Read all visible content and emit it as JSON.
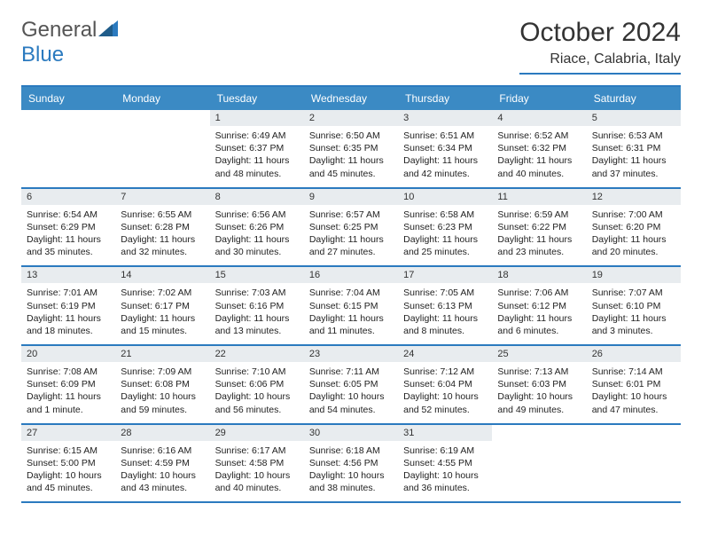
{
  "logo": {
    "word1": "General",
    "word2": "Blue"
  },
  "title": "October 2024",
  "location": "Riace, Calabria, Italy",
  "day_names": [
    "Sunday",
    "Monday",
    "Tuesday",
    "Wednesday",
    "Thursday",
    "Friday",
    "Saturday"
  ],
  "header_bg": "#3b8ac4",
  "accent": "#2b7abf",
  "date_bg": "#e8ecef",
  "weeks": [
    [
      {
        "n": "",
        "sr": "",
        "ss": "",
        "d1": "",
        "d2": ""
      },
      {
        "n": "",
        "sr": "",
        "ss": "",
        "d1": "",
        "d2": ""
      },
      {
        "n": "1",
        "sr": "Sunrise: 6:49 AM",
        "ss": "Sunset: 6:37 PM",
        "d1": "Daylight: 11 hours",
        "d2": "and 48 minutes."
      },
      {
        "n": "2",
        "sr": "Sunrise: 6:50 AM",
        "ss": "Sunset: 6:35 PM",
        "d1": "Daylight: 11 hours",
        "d2": "and 45 minutes."
      },
      {
        "n": "3",
        "sr": "Sunrise: 6:51 AM",
        "ss": "Sunset: 6:34 PM",
        "d1": "Daylight: 11 hours",
        "d2": "and 42 minutes."
      },
      {
        "n": "4",
        "sr": "Sunrise: 6:52 AM",
        "ss": "Sunset: 6:32 PM",
        "d1": "Daylight: 11 hours",
        "d2": "and 40 minutes."
      },
      {
        "n": "5",
        "sr": "Sunrise: 6:53 AM",
        "ss": "Sunset: 6:31 PM",
        "d1": "Daylight: 11 hours",
        "d2": "and 37 minutes."
      }
    ],
    [
      {
        "n": "6",
        "sr": "Sunrise: 6:54 AM",
        "ss": "Sunset: 6:29 PM",
        "d1": "Daylight: 11 hours",
        "d2": "and 35 minutes."
      },
      {
        "n": "7",
        "sr": "Sunrise: 6:55 AM",
        "ss": "Sunset: 6:28 PM",
        "d1": "Daylight: 11 hours",
        "d2": "and 32 minutes."
      },
      {
        "n": "8",
        "sr": "Sunrise: 6:56 AM",
        "ss": "Sunset: 6:26 PM",
        "d1": "Daylight: 11 hours",
        "d2": "and 30 minutes."
      },
      {
        "n": "9",
        "sr": "Sunrise: 6:57 AM",
        "ss": "Sunset: 6:25 PM",
        "d1": "Daylight: 11 hours",
        "d2": "and 27 minutes."
      },
      {
        "n": "10",
        "sr": "Sunrise: 6:58 AM",
        "ss": "Sunset: 6:23 PM",
        "d1": "Daylight: 11 hours",
        "d2": "and 25 minutes."
      },
      {
        "n": "11",
        "sr": "Sunrise: 6:59 AM",
        "ss": "Sunset: 6:22 PM",
        "d1": "Daylight: 11 hours",
        "d2": "and 23 minutes."
      },
      {
        "n": "12",
        "sr": "Sunrise: 7:00 AM",
        "ss": "Sunset: 6:20 PM",
        "d1": "Daylight: 11 hours",
        "d2": "and 20 minutes."
      }
    ],
    [
      {
        "n": "13",
        "sr": "Sunrise: 7:01 AM",
        "ss": "Sunset: 6:19 PM",
        "d1": "Daylight: 11 hours",
        "d2": "and 18 minutes."
      },
      {
        "n": "14",
        "sr": "Sunrise: 7:02 AM",
        "ss": "Sunset: 6:17 PM",
        "d1": "Daylight: 11 hours",
        "d2": "and 15 minutes."
      },
      {
        "n": "15",
        "sr": "Sunrise: 7:03 AM",
        "ss": "Sunset: 6:16 PM",
        "d1": "Daylight: 11 hours",
        "d2": "and 13 minutes."
      },
      {
        "n": "16",
        "sr": "Sunrise: 7:04 AM",
        "ss": "Sunset: 6:15 PM",
        "d1": "Daylight: 11 hours",
        "d2": "and 11 minutes."
      },
      {
        "n": "17",
        "sr": "Sunrise: 7:05 AM",
        "ss": "Sunset: 6:13 PM",
        "d1": "Daylight: 11 hours",
        "d2": "and 8 minutes."
      },
      {
        "n": "18",
        "sr": "Sunrise: 7:06 AM",
        "ss": "Sunset: 6:12 PM",
        "d1": "Daylight: 11 hours",
        "d2": "and 6 minutes."
      },
      {
        "n": "19",
        "sr": "Sunrise: 7:07 AM",
        "ss": "Sunset: 6:10 PM",
        "d1": "Daylight: 11 hours",
        "d2": "and 3 minutes."
      }
    ],
    [
      {
        "n": "20",
        "sr": "Sunrise: 7:08 AM",
        "ss": "Sunset: 6:09 PM",
        "d1": "Daylight: 11 hours",
        "d2": "and 1 minute."
      },
      {
        "n": "21",
        "sr": "Sunrise: 7:09 AM",
        "ss": "Sunset: 6:08 PM",
        "d1": "Daylight: 10 hours",
        "d2": "and 59 minutes."
      },
      {
        "n": "22",
        "sr": "Sunrise: 7:10 AM",
        "ss": "Sunset: 6:06 PM",
        "d1": "Daylight: 10 hours",
        "d2": "and 56 minutes."
      },
      {
        "n": "23",
        "sr": "Sunrise: 7:11 AM",
        "ss": "Sunset: 6:05 PM",
        "d1": "Daylight: 10 hours",
        "d2": "and 54 minutes."
      },
      {
        "n": "24",
        "sr": "Sunrise: 7:12 AM",
        "ss": "Sunset: 6:04 PM",
        "d1": "Daylight: 10 hours",
        "d2": "and 52 minutes."
      },
      {
        "n": "25",
        "sr": "Sunrise: 7:13 AM",
        "ss": "Sunset: 6:03 PM",
        "d1": "Daylight: 10 hours",
        "d2": "and 49 minutes."
      },
      {
        "n": "26",
        "sr": "Sunrise: 7:14 AM",
        "ss": "Sunset: 6:01 PM",
        "d1": "Daylight: 10 hours",
        "d2": "and 47 minutes."
      }
    ],
    [
      {
        "n": "27",
        "sr": "Sunrise: 6:15 AM",
        "ss": "Sunset: 5:00 PM",
        "d1": "Daylight: 10 hours",
        "d2": "and 45 minutes."
      },
      {
        "n": "28",
        "sr": "Sunrise: 6:16 AM",
        "ss": "Sunset: 4:59 PM",
        "d1": "Daylight: 10 hours",
        "d2": "and 43 minutes."
      },
      {
        "n": "29",
        "sr": "Sunrise: 6:17 AM",
        "ss": "Sunset: 4:58 PM",
        "d1": "Daylight: 10 hours",
        "d2": "and 40 minutes."
      },
      {
        "n": "30",
        "sr": "Sunrise: 6:18 AM",
        "ss": "Sunset: 4:56 PM",
        "d1": "Daylight: 10 hours",
        "d2": "and 38 minutes."
      },
      {
        "n": "31",
        "sr": "Sunrise: 6:19 AM",
        "ss": "Sunset: 4:55 PM",
        "d1": "Daylight: 10 hours",
        "d2": "and 36 minutes."
      },
      {
        "n": "",
        "sr": "",
        "ss": "",
        "d1": "",
        "d2": ""
      },
      {
        "n": "",
        "sr": "",
        "ss": "",
        "d1": "",
        "d2": ""
      }
    ]
  ]
}
